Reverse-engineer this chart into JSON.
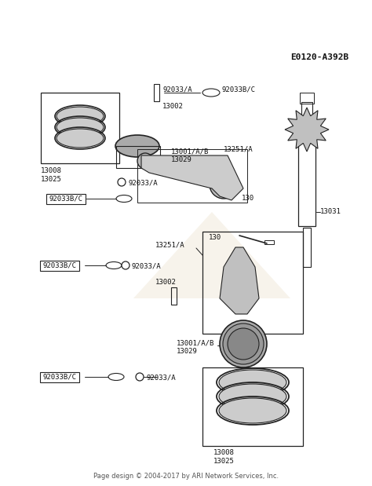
{
  "bg_color": "#ffffff",
  "diagram_id": "E0120-A392B",
  "footer": "Page design © 2004-2017 by ARI Network Services, Inc.",
  "line_color": "#222222",
  "text_color": "#111111",
  "watermark_color": "#f0e8d8",
  "parts": [
    {
      "id": "92033/A",
      "label": "92033/A"
    },
    {
      "id": "92033B/C",
      "label": "92033B/C"
    },
    {
      "id": "13002",
      "label": "13002"
    },
    {
      "id": "13001/A/B",
      "label": "13001/A/B"
    },
    {
      "id": "13029",
      "label": "13029"
    },
    {
      "id": "13251/A",
      "label": "13251/A"
    },
    {
      "id": "13008",
      "label": "13008"
    },
    {
      "id": "13025",
      "label": "13025"
    },
    {
      "id": "130",
      "label": "130"
    },
    {
      "id": "13031",
      "label": "13031"
    }
  ]
}
